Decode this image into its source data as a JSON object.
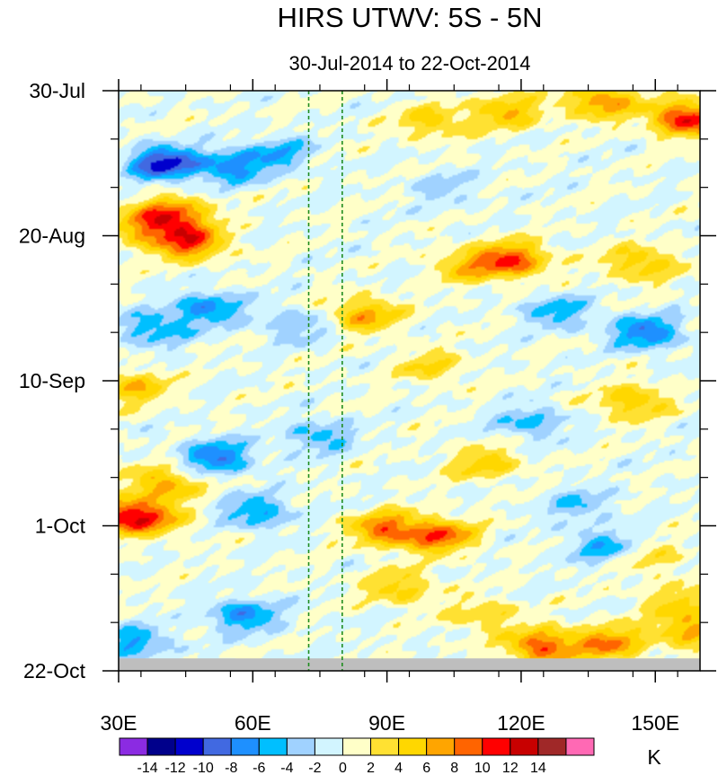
{
  "chart_data": {
    "type": "heatmap",
    "title": "HIRS UTWV: 5S - 5N",
    "subtitle": "30-Jul-2014 to 22-Oct-2014",
    "x_axis": {
      "range": [
        30,
        160
      ],
      "ticks": [
        {
          "value": 30,
          "label": "30E"
        },
        {
          "value": 60,
          "label": "60E"
        },
        {
          "value": 90,
          "label": "90E"
        },
        {
          "value": 120,
          "label": "120E"
        },
        {
          "value": 150,
          "label": "150E"
        }
      ]
    },
    "y_axis": {
      "range_days": [
        0,
        84
      ],
      "ticks": [
        {
          "day": 0,
          "label": "30-Jul"
        },
        {
          "day": 21,
          "label": "20-Aug"
        },
        {
          "day": 42,
          "label": "10-Sep"
        },
        {
          "day": 63,
          "label": "1-Oct"
        },
        {
          "day": 84,
          "label": "22-Oct"
        }
      ]
    },
    "reference_lines_lon": [
      72.5,
      80
    ],
    "missing_data_days": [
      82.2,
      84
    ],
    "colorbar": {
      "unit": "K",
      "colors": [
        "#8b2be2",
        "#00008b",
        "#0000cd",
        "#4169e1",
        "#1e90ff",
        "#00bfff",
        "#a0d2ff",
        "#d2f5ff",
        "#ffffc8",
        "#ffe132",
        "#ffd700",
        "#ffa500",
        "#ff6400",
        "#ff0000",
        "#c80000",
        "#a02828",
        "#ff69b4"
      ],
      "levels": [
        -14,
        -12,
        -10,
        -8,
        -6,
        -4,
        -2,
        0,
        2,
        4,
        6,
        8,
        10,
        12,
        14
      ]
    },
    "anomaly_features": [
      {
        "lon": 138,
        "day": 1.5,
        "value": 8
      },
      {
        "lon": 157,
        "day": 4,
        "value": 12
      },
      {
        "lon": 100,
        "day": 4.5,
        "value": 5
      },
      {
        "lon": 117,
        "day": 3,
        "value": 6
      },
      {
        "lon": 40,
        "day": 10.5,
        "value": -11
      },
      {
        "lon": 55,
        "day": 11,
        "value": -7
      },
      {
        "lon": 42,
        "day": 18,
        "value": 10
      },
      {
        "lon": 46,
        "day": 22,
        "value": 10
      },
      {
        "lon": 36,
        "day": 20,
        "value": 6
      },
      {
        "lon": 118,
        "day": 24.5,
        "value": 10
      },
      {
        "lon": 108,
        "day": 25.5,
        "value": 5
      },
      {
        "lon": 147,
        "day": 25,
        "value": 6
      },
      {
        "lon": 66,
        "day": 9,
        "value": -5
      },
      {
        "lon": 103,
        "day": 14,
        "value": -3
      },
      {
        "lon": 50,
        "day": 31.5,
        "value": -7
      },
      {
        "lon": 38,
        "day": 34.5,
        "value": -6
      },
      {
        "lon": 85,
        "day": 32.5,
        "value": 7
      },
      {
        "lon": 128,
        "day": 32,
        "value": -5
      },
      {
        "lon": 148,
        "day": 35,
        "value": -8
      },
      {
        "lon": 70,
        "day": 34,
        "value": -4
      },
      {
        "lon": 100,
        "day": 40,
        "value": 4
      },
      {
        "lon": 33,
        "day": 43,
        "value": 6
      },
      {
        "lon": 145,
        "day": 45,
        "value": 6
      },
      {
        "lon": 52,
        "day": 53,
        "value": -8
      },
      {
        "lon": 75,
        "day": 50,
        "value": -5
      },
      {
        "lon": 40,
        "day": 57,
        "value": 7
      },
      {
        "lon": 122,
        "day": 48,
        "value": -5
      },
      {
        "lon": 112,
        "day": 54,
        "value": 5
      },
      {
        "lon": 30.5,
        "day": 61.5,
        "value": 10
      },
      {
        "lon": 38,
        "day": 62,
        "value": 6
      },
      {
        "lon": 61,
        "day": 61,
        "value": -6
      },
      {
        "lon": 102,
        "day": 64.5,
        "value": 9
      },
      {
        "lon": 90,
        "day": 63.5,
        "value": 9
      },
      {
        "lon": 133,
        "day": 60,
        "value": -4
      },
      {
        "lon": 93,
        "day": 72,
        "value": 5
      },
      {
        "lon": 138,
        "day": 66,
        "value": -5
      },
      {
        "lon": 58,
        "day": 76,
        "value": -7
      },
      {
        "lon": 34,
        "day": 80,
        "value": -6
      },
      {
        "lon": 125,
        "day": 80.5,
        "value": 10
      },
      {
        "lon": 140,
        "day": 80,
        "value": 8
      },
      {
        "lon": 112,
        "day": 76,
        "value": 4
      },
      {
        "lon": 155,
        "day": 74,
        "value": 4
      },
      {
        "lon": 158,
        "day": 78,
        "value": 7
      },
      {
        "lon": 150,
        "day": 68,
        "value": 3
      }
    ]
  }
}
